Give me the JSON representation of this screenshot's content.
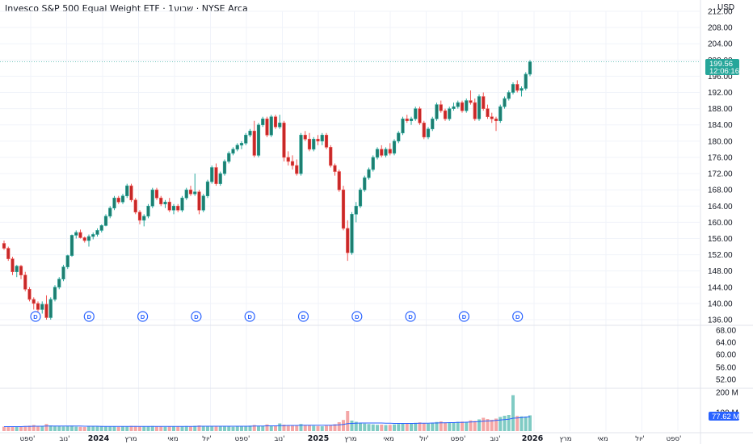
{
  "header": {
    "title": "Invesco S&P 500 Equal Weight ETF · 1שבוע · NYSE Arca",
    "currency": "USD"
  },
  "colors": {
    "up": "#26a69a",
    "down": "#ef5350",
    "up_body": "#1f7d6f",
    "down_body": "#c62828",
    "vol_up": "#80cbc4",
    "vol_down": "#f4a6a6",
    "ma_line": "#2962ff",
    "badge_bg": "#26a69a",
    "vol_badge_bg": "#2962ff",
    "dividend": "#2962ff"
  },
  "price_axis": {
    "ticks": [
      "212.00",
      "208.00",
      "204.00",
      "200.00",
      "196.00",
      "192.00",
      "188.00",
      "184.00",
      "180.00",
      "176.00",
      "172.00",
      "168.00",
      "164.00",
      "160.00",
      "156.00",
      "152.00",
      "148.00",
      "144.00",
      "140.00",
      "136.00"
    ]
  },
  "volume_axis": {
    "ticks": [
      "68.00",
      "64.00",
      "60.00",
      "56.00",
      "52.00",
      "200 M",
      "100 M"
    ]
  },
  "last_price": {
    "value": "199.56",
    "countdown": "12:06:16"
  },
  "volume_badge": "77.62 M",
  "x_axis": {
    "labels": [
      {
        "text": "ספט'",
        "year": false
      },
      {
        "text": "נוב'",
        "year": false
      },
      {
        "text": "2024",
        "year": true
      },
      {
        "text": "מרץ",
        "year": false
      },
      {
        "text": "מאי",
        "year": false
      },
      {
        "text": "יול'",
        "year": false
      },
      {
        "text": "ספט'",
        "year": false
      },
      {
        "text": "נוב'",
        "year": false
      },
      {
        "text": "2025",
        "year": true
      },
      {
        "text": "מרץ",
        "year": false
      },
      {
        "text": "מאי",
        "year": false
      },
      {
        "text": "יול'",
        "year": false
      },
      {
        "text": "ספט'",
        "year": false
      },
      {
        "text": "נוב'",
        "year": false
      },
      {
        "text": "2026",
        "year": true
      },
      {
        "text": "מרץ",
        "year": false
      },
      {
        "text": "מאי",
        "year": false
      },
      {
        "text": "יול'",
        "year": false
      },
      {
        "text": "ספט'",
        "year": false
      }
    ]
  },
  "dividends": {
    "label": "D",
    "count": 10
  },
  "chart_data": {
    "type": "candlestick",
    "ylim": [
      136,
      212
    ],
    "volume_ylim": [
      0,
      200
    ],
    "volume_unit": "M",
    "candles": [
      [
        154.8,
        155.5,
        153.2,
        153.6
      ],
      [
        153.6,
        154.0,
        150.5,
        151.0
      ],
      [
        151.0,
        151.5,
        147.0,
        147.8
      ],
      [
        147.8,
        149.5,
        146.5,
        149.2
      ],
      [
        149.2,
        149.5,
        146.0,
        147.0
      ],
      [
        147.0,
        147.8,
        143.0,
        143.5
      ],
      [
        143.5,
        144.0,
        140.5,
        141.0
      ],
      [
        141.0,
        141.5,
        138.5,
        140.0
      ],
      [
        140.0,
        140.5,
        138.0,
        138.5
      ],
      [
        138.5,
        140.5,
        137.5,
        139.8
      ],
      [
        139.8,
        142.0,
        136.0,
        136.5
      ],
      [
        136.5,
        141.5,
        136.0,
        141.0
      ],
      [
        141.0,
        144.5,
        140.5,
        144.0
      ],
      [
        144.0,
        146.5,
        143.5,
        146.0
      ],
      [
        146.0,
        149.5,
        145.5,
        149.0
      ],
      [
        149.0,
        152.0,
        148.5,
        151.8
      ],
      [
        151.8,
        157.0,
        151.5,
        156.8
      ],
      [
        156.8,
        158.0,
        156.0,
        157.5
      ],
      [
        157.5,
        158.2,
        156.0,
        156.2
      ],
      [
        156.2,
        156.5,
        155.0,
        155.5
      ],
      [
        155.5,
        157.0,
        154.0,
        156.5
      ],
      [
        156.5,
        157.5,
        155.8,
        157.0
      ],
      [
        157.0,
        158.5,
        156.5,
        158.0
      ],
      [
        158.0,
        159.5,
        157.5,
        159.2
      ],
      [
        159.2,
        162.0,
        159.0,
        161.5
      ],
      [
        161.5,
        164.0,
        161.0,
        163.5
      ],
      [
        163.5,
        166.5,
        163.0,
        166.0
      ],
      [
        166.0,
        166.5,
        164.5,
        165.0
      ],
      [
        165.0,
        167.0,
        164.5,
        166.5
      ],
      [
        166.5,
        169.5,
        166.0,
        169.0
      ],
      [
        169.0,
        169.5,
        165.0,
        165.5
      ],
      [
        165.5,
        166.0,
        162.0,
        162.5
      ],
      [
        162.5,
        163.0,
        159.5,
        160.5
      ],
      [
        160.5,
        162.0,
        159.0,
        161.5
      ],
      [
        161.5,
        164.5,
        161.0,
        164.0
      ],
      [
        164.0,
        168.5,
        163.5,
        168.0
      ],
      [
        168.0,
        168.5,
        165.5,
        166.0
      ],
      [
        166.0,
        166.5,
        164.0,
        164.5
      ],
      [
        164.5,
        165.5,
        163.5,
        165.0
      ],
      [
        165.0,
        166.0,
        162.5,
        163.0
      ],
      [
        163.0,
        164.5,
        162.0,
        164.0
      ],
      [
        164.0,
        164.5,
        162.5,
        163.0
      ],
      [
        163.0,
        166.5,
        162.5,
        166.0
      ],
      [
        166.0,
        168.5,
        165.5,
        168.0
      ],
      [
        168.0,
        169.0,
        166.5,
        167.0
      ],
      [
        167.0,
        172.0,
        166.5,
        167.5
      ],
      [
        167.5,
        168.0,
        162.0,
        163.0
      ],
      [
        163.0,
        167.0,
        162.5,
        166.5
      ],
      [
        166.5,
        170.5,
        166.0,
        170.0
      ],
      [
        170.0,
        174.0,
        169.5,
        173.5
      ],
      [
        173.5,
        174.5,
        169.0,
        169.5
      ],
      [
        169.5,
        172.5,
        169.0,
        172.0
      ],
      [
        172.0,
        175.5,
        171.5,
        175.0
      ],
      [
        175.0,
        177.5,
        174.5,
        177.0
      ],
      [
        177.0,
        178.5,
        176.5,
        178.0
      ],
      [
        178.0,
        179.5,
        177.5,
        179.0
      ],
      [
        179.0,
        180.0,
        178.0,
        179.5
      ],
      [
        179.5,
        182.0,
        179.0,
        181.5
      ],
      [
        181.5,
        183.0,
        181.0,
        182.5
      ],
      [
        182.5,
        185.0,
        176.0,
        176.5
      ],
      [
        176.5,
        184.5,
        176.0,
        184.0
      ],
      [
        184.0,
        186.0,
        183.5,
        185.5
      ],
      [
        185.5,
        186.0,
        181.0,
        181.5
      ],
      [
        181.5,
        186.5,
        181.0,
        186.0
      ],
      [
        186.0,
        186.5,
        183.0,
        183.5
      ],
      [
        183.5,
        186.5,
        183.0,
        184.5
      ],
      [
        184.5,
        185.0,
        175.0,
        176.0
      ],
      [
        176.0,
        177.5,
        174.0,
        175.0
      ],
      [
        175.0,
        176.5,
        173.0,
        174.0
      ],
      [
        174.0,
        175.5,
        171.5,
        172.0
      ],
      [
        172.0,
        182.0,
        171.5,
        181.5
      ],
      [
        181.5,
        182.5,
        180.0,
        180.5
      ],
      [
        180.5,
        182.0,
        177.5,
        178.0
      ],
      [
        178.0,
        181.0,
        177.5,
        180.5
      ],
      [
        180.5,
        181.5,
        179.0,
        180.0
      ],
      [
        180.0,
        182.0,
        179.0,
        181.5
      ],
      [
        181.5,
        182.0,
        178.0,
        178.5
      ],
      [
        178.5,
        179.0,
        173.5,
        174.0
      ],
      [
        174.0,
        174.5,
        171.5,
        172.5
      ],
      [
        172.5,
        173.0,
        167.5,
        168.0
      ],
      [
        168.0,
        169.0,
        158.0,
        158.5
      ],
      [
        158.5,
        160.5,
        150.5,
        152.5
      ],
      [
        152.5,
        162.5,
        152.0,
        162.0
      ],
      [
        162.0,
        165.0,
        160.0,
        164.0
      ],
      [
        164.0,
        168.5,
        163.5,
        168.0
      ],
      [
        168.0,
        171.5,
        167.5,
        171.0
      ],
      [
        171.0,
        173.5,
        170.5,
        173.0
      ],
      [
        173.0,
        176.5,
        172.5,
        176.0
      ],
      [
        176.0,
        178.5,
        175.5,
        178.0
      ],
      [
        178.0,
        179.0,
        176.0,
        176.5
      ],
      [
        176.5,
        178.5,
        176.0,
        178.0
      ],
      [
        178.0,
        179.5,
        176.5,
        177.0
      ],
      [
        177.0,
        180.5,
        176.5,
        180.0
      ],
      [
        180.0,
        182.5,
        179.5,
        182.0
      ],
      [
        182.0,
        186.0,
        181.5,
        185.5
      ],
      [
        185.5,
        186.5,
        184.5,
        185.0
      ],
      [
        185.0,
        186.0,
        184.0,
        185.5
      ],
      [
        185.5,
        188.5,
        185.0,
        188.0
      ],
      [
        188.0,
        188.5,
        184.0,
        184.5
      ],
      [
        184.5,
        185.0,
        180.5,
        181.0
      ],
      [
        181.0,
        183.5,
        180.5,
        183.0
      ],
      [
        183.0,
        186.0,
        182.5,
        185.5
      ],
      [
        185.5,
        189.5,
        185.0,
        189.0
      ],
      [
        189.0,
        190.0,
        187.0,
        187.5
      ],
      [
        187.5,
        188.0,
        185.0,
        185.5
      ],
      [
        185.5,
        188.5,
        185.0,
        188.0
      ],
      [
        188.0,
        189.5,
        187.5,
        188.5
      ],
      [
        188.5,
        190.0,
        188.0,
        189.5
      ],
      [
        189.5,
        190.0,
        187.0,
        187.5
      ],
      [
        187.5,
        190.5,
        187.0,
        190.0
      ],
      [
        190.0,
        192.5,
        189.0,
        189.5
      ],
      [
        189.5,
        190.5,
        185.0,
        185.5
      ],
      [
        185.5,
        191.5,
        185.0,
        191.0
      ],
      [
        191.0,
        192.0,
        187.5,
        188.0
      ],
      [
        188.0,
        189.0,
        185.5,
        186.0
      ],
      [
        186.0,
        187.0,
        184.5,
        185.5
      ],
      [
        185.5,
        186.0,
        182.5,
        185.0
      ],
      [
        185.0,
        189.0,
        184.5,
        188.5
      ],
      [
        188.5,
        191.0,
        188.0,
        190.5
      ],
      [
        190.5,
        192.5,
        190.0,
        192.0
      ],
      [
        192.0,
        194.5,
        191.5,
        194.0
      ],
      [
        194.0,
        195.0,
        192.0,
        192.5
      ],
      [
        192.5,
        193.5,
        191.0,
        193.0
      ],
      [
        193.0,
        197.0,
        192.5,
        196.5
      ],
      [
        196.5,
        200.0,
        196.0,
        199.56
      ]
    ],
    "volumes": [
      22,
      24,
      21,
      20,
      23,
      25,
      27,
      30,
      26,
      24,
      35,
      28,
      26,
      24,
      23,
      25,
      27,
      22,
      21,
      20,
      22,
      24,
      23,
      25,
      24,
      23,
      22,
      21,
      23,
      22,
      26,
      25,
      24,
      22,
      23,
      25,
      24,
      22,
      21,
      23,
      22,
      24,
      23,
      25,
      24,
      26,
      28,
      24,
      23,
      22,
      25,
      24,
      23,
      22,
      21,
      24,
      23,
      25,
      27,
      30,
      26,
      25,
      33,
      28,
      26,
      38,
      32,
      29,
      27,
      26,
      35,
      30,
      28,
      26,
      25,
      24,
      27,
      29,
      34,
      44,
      55,
      100,
      52,
      46,
      40,
      37,
      35,
      33,
      31,
      32,
      30,
      31,
      33,
      35,
      36,
      38,
      40,
      41,
      43,
      39,
      37,
      41,
      45,
      48,
      43,
      42,
      44,
      46,
      47,
      45,
      53,
      50,
      58,
      66,
      60,
      56,
      62,
      70,
      76,
      80,
      178,
      75,
      73,
      72,
      78
    ],
    "volume_ma": [
      22,
      22,
      22,
      22,
      22,
      23,
      23,
      24,
      24,
      24,
      25,
      25,
      25,
      25,
      25,
      25,
      25,
      25,
      25,
      24,
      24,
      24,
      24,
      23,
      23,
      23,
      23,
      23,
      23,
      23,
      23,
      23,
      23,
      23,
      23,
      23,
      23,
      23,
      23,
      23,
      23,
      23,
      23,
      23,
      23,
      23,
      24,
      24,
      24,
      24,
      24,
      24,
      24,
      24,
      24,
      24,
      24,
      24,
      24,
      25,
      25,
      25,
      26,
      26,
      26,
      27,
      27,
      28,
      28,
      28,
      29,
      29,
      29,
      29,
      29,
      29,
      29,
      29,
      30,
      31,
      33,
      37,
      38,
      39,
      40,
      40,
      40,
      40,
      40,
      40,
      39,
      39,
      38,
      38,
      38,
      38,
      38,
      38,
      39,
      39,
      39,
      40,
      40,
      41,
      41,
      42,
      42,
      43,
      43,
      44,
      45,
      46,
      47,
      49,
      50,
      51,
      53,
      55,
      57,
      59,
      64,
      65,
      67,
      69,
      71
    ]
  }
}
